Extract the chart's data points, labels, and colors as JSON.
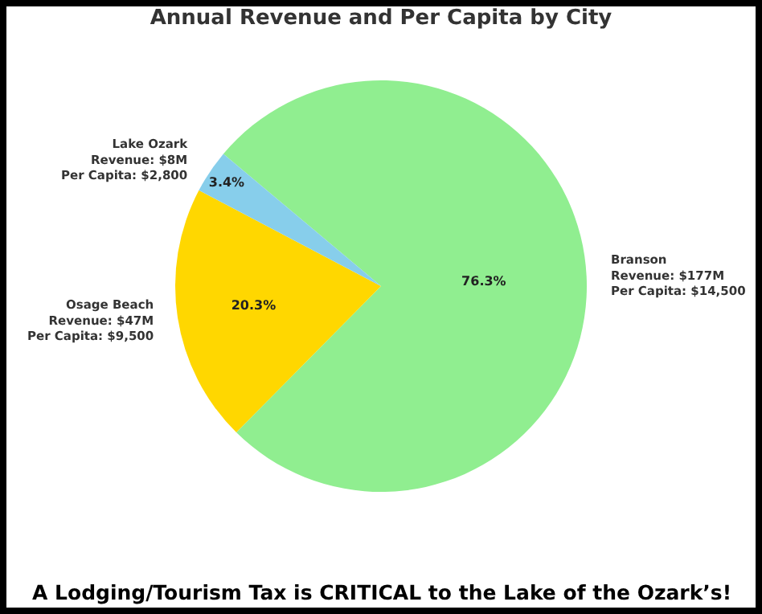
{
  "chart_data": {
    "type": "pie",
    "title": "Annual Revenue and Per Capita by City",
    "categories": [
      "Branson\nRevenue: $177M\nPer Capita: $14,500",
      "Osage Beach\nRevenue: $47M\nPer Capita: $9,500",
      "Lake Ozark\nRevenue: $8M\nPer Capita: $2,800"
    ],
    "values": [
      76.3,
      20.3,
      3.4
    ],
    "value_labels": [
      "76.3%",
      "20.3%",
      "3.4%"
    ],
    "colors": [
      "#90ee90",
      "#ffd700",
      "#87ceeb"
    ],
    "annotations": [
      "A Lodging/Tourism Tax is CRITICAL to the Lake of the Ozark’s!"
    ]
  }
}
